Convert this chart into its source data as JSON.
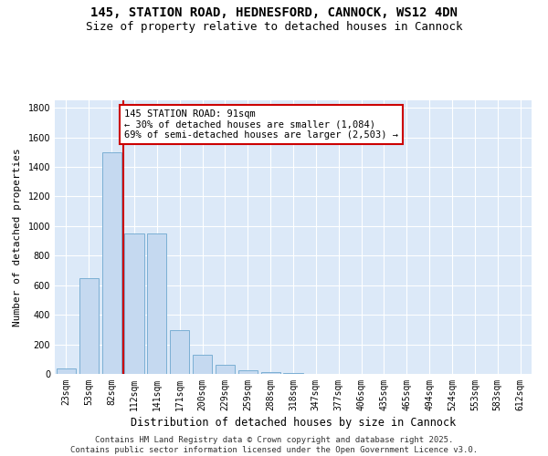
{
  "title": "145, STATION ROAD, HEDNESFORD, CANNOCK, WS12 4DN",
  "subtitle": "Size of property relative to detached houses in Cannock",
  "xlabel": "Distribution of detached houses by size in Cannock",
  "ylabel": "Number of detached properties",
  "categories": [
    "23sqm",
    "53sqm",
    "82sqm",
    "112sqm",
    "141sqm",
    "171sqm",
    "200sqm",
    "229sqm",
    "259sqm",
    "288sqm",
    "318sqm",
    "347sqm",
    "377sqm",
    "406sqm",
    "435sqm",
    "465sqm",
    "494sqm",
    "524sqm",
    "553sqm",
    "583sqm",
    "612sqm"
  ],
  "values": [
    40,
    650,
    1500,
    950,
    950,
    295,
    130,
    60,
    22,
    10,
    5,
    3,
    2,
    2,
    2,
    2,
    2,
    2,
    2,
    2,
    2
  ],
  "bar_color": "#c5d9f0",
  "bar_edge_color": "#7bafd4",
  "vline_x": 2.5,
  "vline_color": "#cc0000",
  "annotation_text": "145 STATION ROAD: 91sqm\n← 30% of detached houses are smaller (1,084)\n69% of semi-detached houses are larger (2,503) →",
  "annotation_box_facecolor": "#ffffff",
  "annotation_box_edgecolor": "#cc0000",
  "ylim": [
    0,
    1850
  ],
  "yticks": [
    0,
    200,
    400,
    600,
    800,
    1000,
    1200,
    1400,
    1600,
    1800
  ],
  "plot_bg_color": "#dce9f8",
  "fig_bg_color": "#ffffff",
  "grid_color": "#ffffff",
  "footnote": "Contains HM Land Registry data © Crown copyright and database right 2025.\nContains public sector information licensed under the Open Government Licence v3.0.",
  "title_fontsize": 10,
  "subtitle_fontsize": 9,
  "xlabel_fontsize": 8.5,
  "ylabel_fontsize": 8,
  "tick_fontsize": 7,
  "annotation_fontsize": 7.5,
  "footnote_fontsize": 6.5
}
